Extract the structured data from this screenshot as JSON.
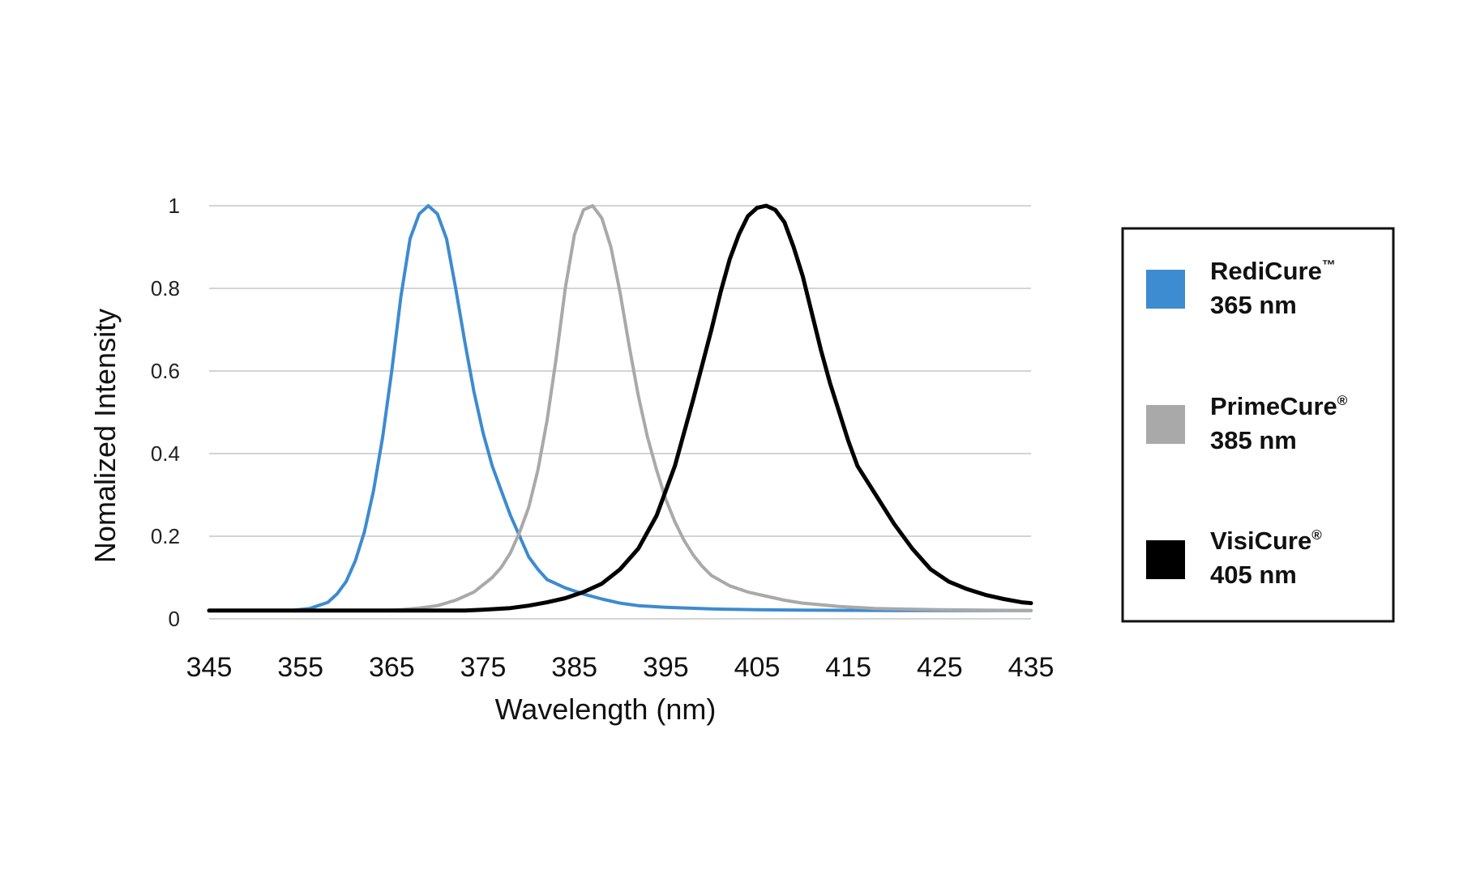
{
  "chart_data": {
    "type": "line",
    "title": "",
    "xlabel": "Wavelength (nm)",
    "ylabel": "Nomalized Intensity",
    "xlim": [
      345,
      435
    ],
    "ylim": [
      0,
      1
    ],
    "x_ticks": [
      "345",
      "355",
      "365",
      "375",
      "385",
      "395",
      "405",
      "415",
      "425",
      "435"
    ],
    "y_ticks": [
      "0",
      "0.2",
      "0.4",
      "0.6",
      "0.8",
      "1"
    ],
    "grid": "horizontal",
    "legend_position": "right",
    "series": [
      {
        "name": "RediCure™ 365 nm",
        "legend_name": "RediCure",
        "legend_mark": "™",
        "legend_wavelength": "365 nm",
        "color": "#3d8bd0",
        "points": [
          [
            345,
            0.02
          ],
          [
            354,
            0.02
          ],
          [
            356,
            0.025
          ],
          [
            358,
            0.04
          ],
          [
            359,
            0.06
          ],
          [
            360,
            0.09
          ],
          [
            361,
            0.14
          ],
          [
            362,
            0.21
          ],
          [
            363,
            0.31
          ],
          [
            364,
            0.44
          ],
          [
            365,
            0.6
          ],
          [
            366,
            0.78
          ],
          [
            367,
            0.92
          ],
          [
            368,
            0.98
          ],
          [
            369,
            1.0
          ],
          [
            370,
            0.98
          ],
          [
            371,
            0.92
          ],
          [
            372,
            0.8
          ],
          [
            373,
            0.67
          ],
          [
            374,
            0.55
          ],
          [
            375,
            0.45
          ],
          [
            376,
            0.37
          ],
          [
            377,
            0.31
          ],
          [
            378,
            0.25
          ],
          [
            379,
            0.2
          ],
          [
            380,
            0.15
          ],
          [
            381,
            0.12
          ],
          [
            382,
            0.095
          ],
          [
            384,
            0.075
          ],
          [
            386,
            0.06
          ],
          [
            388,
            0.048
          ],
          [
            390,
            0.038
          ],
          [
            392,
            0.032
          ],
          [
            395,
            0.028
          ],
          [
            400,
            0.024
          ],
          [
            405,
            0.022
          ],
          [
            410,
            0.021
          ],
          [
            420,
            0.02
          ],
          [
            435,
            0.02
          ]
        ]
      },
      {
        "name": "PrimeCure® 385 nm",
        "legend_name": "PrimeCure",
        "legend_mark": "®",
        "legend_wavelength": "385 nm",
        "color": "#a9a9a9",
        "points": [
          [
            345,
            0.02
          ],
          [
            364,
            0.02
          ],
          [
            366,
            0.022
          ],
          [
            368,
            0.026
          ],
          [
            370,
            0.032
          ],
          [
            372,
            0.045
          ],
          [
            374,
            0.065
          ],
          [
            376,
            0.1
          ],
          [
            377,
            0.125
          ],
          [
            378,
            0.16
          ],
          [
            379,
            0.21
          ],
          [
            380,
            0.27
          ],
          [
            381,
            0.36
          ],
          [
            382,
            0.48
          ],
          [
            383,
            0.63
          ],
          [
            384,
            0.8
          ],
          [
            385,
            0.93
          ],
          [
            386,
            0.99
          ],
          [
            387,
            1.0
          ],
          [
            388,
            0.97
          ],
          [
            389,
            0.9
          ],
          [
            390,
            0.79
          ],
          [
            391,
            0.66
          ],
          [
            392,
            0.54
          ],
          [
            393,
            0.44
          ],
          [
            394,
            0.36
          ],
          [
            395,
            0.29
          ],
          [
            396,
            0.235
          ],
          [
            397,
            0.19
          ],
          [
            398,
            0.155
          ],
          [
            399,
            0.127
          ],
          [
            400,
            0.105
          ],
          [
            402,
            0.08
          ],
          [
            404,
            0.065
          ],
          [
            406,
            0.055
          ],
          [
            408,
            0.045
          ],
          [
            410,
            0.038
          ],
          [
            414,
            0.03
          ],
          [
            418,
            0.025
          ],
          [
            425,
            0.022
          ],
          [
            435,
            0.02
          ]
        ]
      },
      {
        "name": "VisiCure® 405 nm",
        "legend_name": "VisiCure",
        "legend_mark": "®",
        "legend_wavelength": "405 nm",
        "color": "#000000",
        "points": [
          [
            345,
            0.02
          ],
          [
            373,
            0.02
          ],
          [
            375,
            0.022
          ],
          [
            378,
            0.026
          ],
          [
            380,
            0.032
          ],
          [
            382,
            0.04
          ],
          [
            384,
            0.05
          ],
          [
            386,
            0.065
          ],
          [
            388,
            0.085
          ],
          [
            390,
            0.12
          ],
          [
            392,
            0.17
          ],
          [
            394,
            0.25
          ],
          [
            396,
            0.37
          ],
          [
            398,
            0.53
          ],
          [
            400,
            0.7
          ],
          [
            401,
            0.79
          ],
          [
            402,
            0.87
          ],
          [
            403,
            0.93
          ],
          [
            404,
            0.975
          ],
          [
            405,
            0.995
          ],
          [
            406,
            1.0
          ],
          [
            407,
            0.99
          ],
          [
            408,
            0.96
          ],
          [
            409,
            0.9
          ],
          [
            410,
            0.83
          ],
          [
            411,
            0.74
          ],
          [
            412,
            0.65
          ],
          [
            413,
            0.57
          ],
          [
            414,
            0.5
          ],
          [
            415,
            0.43
          ],
          [
            416,
            0.37
          ],
          [
            418,
            0.3
          ],
          [
            420,
            0.23
          ],
          [
            422,
            0.17
          ],
          [
            424,
            0.12
          ],
          [
            426,
            0.09
          ],
          [
            428,
            0.072
          ],
          [
            430,
            0.058
          ],
          [
            432,
            0.048
          ],
          [
            434,
            0.04
          ],
          [
            435,
            0.038
          ]
        ]
      }
    ]
  }
}
